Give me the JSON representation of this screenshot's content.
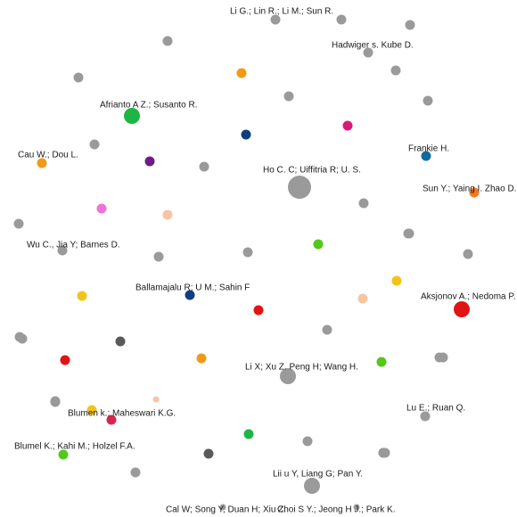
{
  "colors": {
    "gray": "#9a9a9a",
    "green": "#1fb545",
    "red": "#e01414",
    "orange": "#f29a17",
    "blue": "#0f3f82",
    "teal": "#0f6c9e",
    "purple": "#6f1a8a",
    "magenta": "#d61a7a",
    "pink": "#ef74d2",
    "peach": "#f7c5a2",
    "yellow": "#f4c21a",
    "lime": "#52c81a",
    "darkgray": "#5a5a5a",
    "crimson": "#d6264e",
    "brightorange": "#f27a22"
  },
  "nodes": [
    {
      "id": "n1",
      "label": "Li G.; Lin R.; Li M.; Sun R.",
      "color": "gray",
      "size": "small"
    },
    {
      "id": "n2",
      "label": "Hadwiger s. Kube D.",
      "color": "gray",
      "size": "small"
    },
    {
      "id": "n3",
      "label": "Afrianto A Z.; Susanto R.",
      "color": "green",
      "size": "medium"
    },
    {
      "id": "n4",
      "label": "Cau W.; Dou L.",
      "color": "orange",
      "size": "small"
    },
    {
      "id": "n5",
      "label": "Frankie H.",
      "color": "teal",
      "size": "small"
    },
    {
      "id": "n6",
      "label": "Ho C. C; Uiffitria R; U. S.",
      "color": "gray",
      "size": "large"
    },
    {
      "id": "n7",
      "label": "Sun Y.; Yaing I. Zhao D.;",
      "color": "brightorange",
      "size": "small"
    },
    {
      "id": "n8",
      "label": "Wu C., Jia Y; Barnes D.",
      "color": "gray",
      "size": "small"
    },
    {
      "id": "n9",
      "label": "Ballamajalu R; U M.; Sahin F",
      "color": "blue",
      "size": "small"
    },
    {
      "id": "n10",
      "label": "Aksjonov A.; Nedoma P.",
      "color": "red",
      "size": "medium"
    },
    {
      "id": "n11",
      "label": "Li X; Xu Z. Peng H; Wang H.",
      "color": "gray",
      "size": "medium"
    },
    {
      "id": "n12",
      "label": "Blumen k.; Maheswari K.G.",
      "color": "yellow",
      "size": "small"
    },
    {
      "id": "n13",
      "label": "Lu E.; Ruan Q.",
      "color": "gray",
      "size": "small"
    },
    {
      "id": "n14",
      "label": "Blumel K.; Kahi M.; Holzel F.A.",
      "color": "lime",
      "size": "small"
    },
    {
      "id": "n15",
      "label": "Lii u Y, Liang G; Pan Y.",
      "color": "gray",
      "size": "medium"
    },
    {
      "id": "n16",
      "label": "Cal W; Song Y, Duan H; Xiu Z.",
      "color": "gray",
      "size": "tiny"
    },
    {
      "id": "n17",
      "label": "Choi S Y.; Jeong H J.; Park K.",
      "color": "gray",
      "size": "tiny"
    },
    {
      "id": "u1",
      "label": "",
      "color": "gray",
      "size": "small"
    },
    {
      "id": "u2",
      "label": "",
      "color": "gray",
      "size": "small"
    },
    {
      "id": "u3",
      "label": "",
      "color": "gray",
      "size": "small"
    },
    {
      "id": "u4",
      "label": "",
      "color": "orange",
      "size": "small"
    },
    {
      "id": "u5",
      "label": "",
      "color": "gray",
      "size": "small"
    },
    {
      "id": "u6",
      "label": "",
      "color": "gray",
      "size": "small"
    },
    {
      "id": "u7",
      "label": "",
      "color": "magenta",
      "size": "small"
    },
    {
      "id": "u8",
      "label": "",
      "color": "blue",
      "size": "small"
    },
    {
      "id": "u9",
      "label": "",
      "color": "gray",
      "size": "small"
    },
    {
      "id": "u10",
      "label": "",
      "color": "purple",
      "size": "small"
    },
    {
      "id": "u11",
      "label": "",
      "color": "gray",
      "size": "small"
    },
    {
      "id": "u12",
      "label": "",
      "color": "gray",
      "size": "small"
    },
    {
      "id": "u13",
      "label": "",
      "color": "pink",
      "size": "small"
    },
    {
      "id": "u14",
      "label": "",
      "color": "peach",
      "size": "small"
    },
    {
      "id": "u15",
      "label": "",
      "color": "gray",
      "size": "small"
    },
    {
      "id": "u16",
      "label": "",
      "color": "lime",
      "size": "small"
    },
    {
      "id": "u17",
      "label": "",
      "color": "gray",
      "size": "small"
    },
    {
      "id": "u18",
      "label": "",
      "color": "gray",
      "size": "small"
    },
    {
      "id": "u19",
      "label": "",
      "color": "gray",
      "size": "small"
    },
    {
      "id": "u20",
      "label": "",
      "color": "gray",
      "size": "small"
    },
    {
      "id": "u21",
      "label": "",
      "color": "yellow",
      "size": "small"
    },
    {
      "id": "u22",
      "label": "",
      "color": "yellow",
      "size": "small"
    },
    {
      "id": "u23",
      "label": "",
      "color": "red",
      "size": "small"
    },
    {
      "id": "u24",
      "label": "",
      "color": "peach",
      "size": "small"
    },
    {
      "id": "u25",
      "label": "",
      "color": "gray",
      "size": "small"
    },
    {
      "id": "u26",
      "label": "",
      "color": "darkgray",
      "size": "small"
    },
    {
      "id": "u27",
      "label": "",
      "color": "red",
      "size": "small"
    },
    {
      "id": "u28",
      "label": "",
      "color": "orange",
      "size": "small"
    },
    {
      "id": "u29",
      "label": "",
      "color": "lime",
      "size": "small"
    },
    {
      "id": "u30",
      "label": "",
      "color": "gray",
      "size": "small"
    },
    {
      "id": "u31",
      "label": "",
      "color": "gray",
      "size": "small"
    },
    {
      "id": "u32",
      "label": "",
      "color": "peach",
      "size": "tiny"
    },
    {
      "id": "u33",
      "label": "",
      "color": "crimson",
      "size": "small"
    },
    {
      "id": "u34",
      "label": "",
      "color": "gray",
      "size": "small"
    },
    {
      "id": "u35",
      "label": "",
      "color": "green",
      "size": "small"
    },
    {
      "id": "u36",
      "label": "",
      "color": "gray",
      "size": "small"
    },
    {
      "id": "u37",
      "label": "",
      "color": "gray",
      "size": "small"
    },
    {
      "id": "u38",
      "label": "",
      "color": "gray",
      "size": "small"
    },
    {
      "id": "u39",
      "label": "",
      "color": "darkgray",
      "size": "small"
    },
    {
      "id": "u40",
      "label": "",
      "color": "gray",
      "size": "small"
    },
    {
      "id": "u41",
      "label": "",
      "color": "gray",
      "size": "small"
    },
    {
      "id": "u42",
      "label": "",
      "color": "gray",
      "size": "small"
    },
    {
      "id": "u43",
      "label": "",
      "color": "gray",
      "size": "small"
    },
    {
      "id": "u44",
      "label": "",
      "color": "gray",
      "size": "small"
    },
    {
      "id": "u45",
      "label": "",
      "color": "gray",
      "size": "small"
    },
    {
      "id": "u46",
      "label": "",
      "color": "gray",
      "size": "small"
    },
    {
      "id": "u47",
      "label": "",
      "color": "gray",
      "size": "small"
    }
  ]
}
